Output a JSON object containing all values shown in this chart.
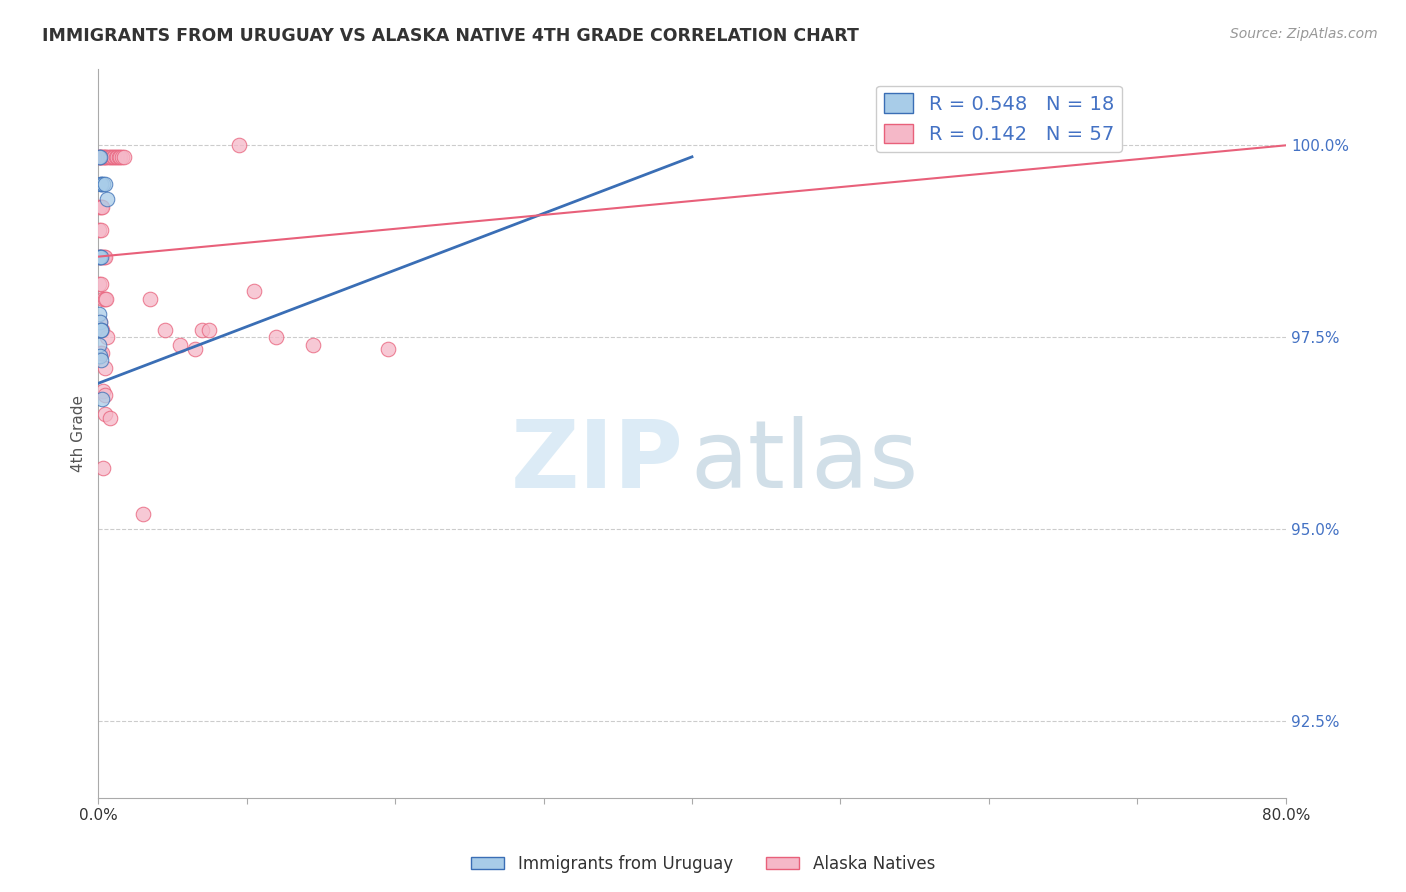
{
  "title": "IMMIGRANTS FROM URUGUAY VS ALASKA NATIVE 4TH GRADE CORRELATION CHART",
  "source": "Source: ZipAtlas.com",
  "ylabel": "4th Grade",
  "xlim": [
    0.0,
    80.0
  ],
  "ylim": [
    91.5,
    101.0
  ],
  "legend_blue_r": "0.548",
  "legend_blue_n": "18",
  "legend_pink_r": "0.142",
  "legend_pink_n": "57",
  "blue_color": "#a8cce8",
  "pink_color": "#f5b8c8",
  "blue_line_color": "#3a6eb5",
  "pink_line_color": "#e8607a",
  "blue_line_x0": 0.0,
  "blue_line_y0": 96.9,
  "blue_line_x1": 40.0,
  "blue_line_y1": 99.85,
  "pink_line_x0": 0.0,
  "pink_line_y0": 98.55,
  "pink_line_x1": 80.0,
  "pink_line_y1": 100.0,
  "yticks": [
    92.5,
    95.0,
    97.5,
    100.0
  ],
  "grid_color": "#cccccc",
  "background_color": "#ffffff",
  "blue_points": [
    [
      0.08,
      99.85
    ],
    [
      0.12,
      99.85
    ],
    [
      0.18,
      99.5
    ],
    [
      0.22,
      99.5
    ],
    [
      0.3,
      99.5
    ],
    [
      0.5,
      99.5
    ],
    [
      0.6,
      99.3
    ],
    [
      0.08,
      98.55
    ],
    [
      0.12,
      98.55
    ],
    [
      0.18,
      98.55
    ],
    [
      0.08,
      97.8
    ],
    [
      0.12,
      97.7
    ],
    [
      0.18,
      97.6
    ],
    [
      0.22,
      97.6
    ],
    [
      0.08,
      97.4
    ],
    [
      0.15,
      97.25
    ],
    [
      0.22,
      97.2
    ],
    [
      0.28,
      96.7
    ]
  ],
  "pink_points": [
    [
      0.08,
      99.85
    ],
    [
      0.12,
      99.85
    ],
    [
      0.18,
      99.85
    ],
    [
      0.22,
      99.85
    ],
    [
      0.3,
      99.85
    ],
    [
      0.38,
      99.85
    ],
    [
      0.46,
      99.85
    ],
    [
      0.55,
      99.85
    ],
    [
      0.65,
      99.85
    ],
    [
      0.78,
      99.85
    ],
    [
      0.88,
      99.85
    ],
    [
      0.98,
      99.85
    ],
    [
      1.08,
      99.85
    ],
    [
      1.18,
      99.85
    ],
    [
      1.28,
      99.85
    ],
    [
      1.38,
      99.85
    ],
    [
      1.5,
      99.85
    ],
    [
      1.62,
      99.85
    ],
    [
      1.75,
      99.85
    ],
    [
      0.08,
      99.2
    ],
    [
      0.18,
      99.2
    ],
    [
      0.28,
      99.2
    ],
    [
      0.08,
      98.9
    ],
    [
      0.18,
      98.9
    ],
    [
      0.08,
      98.55
    ],
    [
      0.18,
      98.55
    ],
    [
      0.28,
      98.55
    ],
    [
      0.4,
      98.55
    ],
    [
      0.5,
      98.55
    ],
    [
      0.08,
      98.2
    ],
    [
      0.2,
      98.2
    ],
    [
      0.35,
      98.0
    ],
    [
      0.45,
      98.0
    ],
    [
      0.55,
      98.0
    ],
    [
      0.15,
      97.7
    ],
    [
      0.28,
      97.6
    ],
    [
      0.6,
      97.5
    ],
    [
      0.15,
      97.3
    ],
    [
      0.25,
      97.3
    ],
    [
      0.5,
      97.1
    ],
    [
      0.35,
      96.8
    ],
    [
      0.45,
      96.75
    ],
    [
      0.5,
      96.5
    ],
    [
      0.8,
      96.45
    ],
    [
      0.3,
      95.8
    ],
    [
      3.5,
      98.0
    ],
    [
      4.5,
      97.6
    ],
    [
      5.5,
      97.4
    ],
    [
      6.5,
      97.35
    ],
    [
      7.0,
      97.6
    ],
    [
      7.5,
      97.6
    ],
    [
      9.5,
      100.0
    ],
    [
      10.5,
      98.1
    ],
    [
      12.0,
      97.5
    ],
    [
      14.5,
      97.4
    ],
    [
      19.5,
      97.35
    ],
    [
      3.0,
      95.2
    ]
  ]
}
